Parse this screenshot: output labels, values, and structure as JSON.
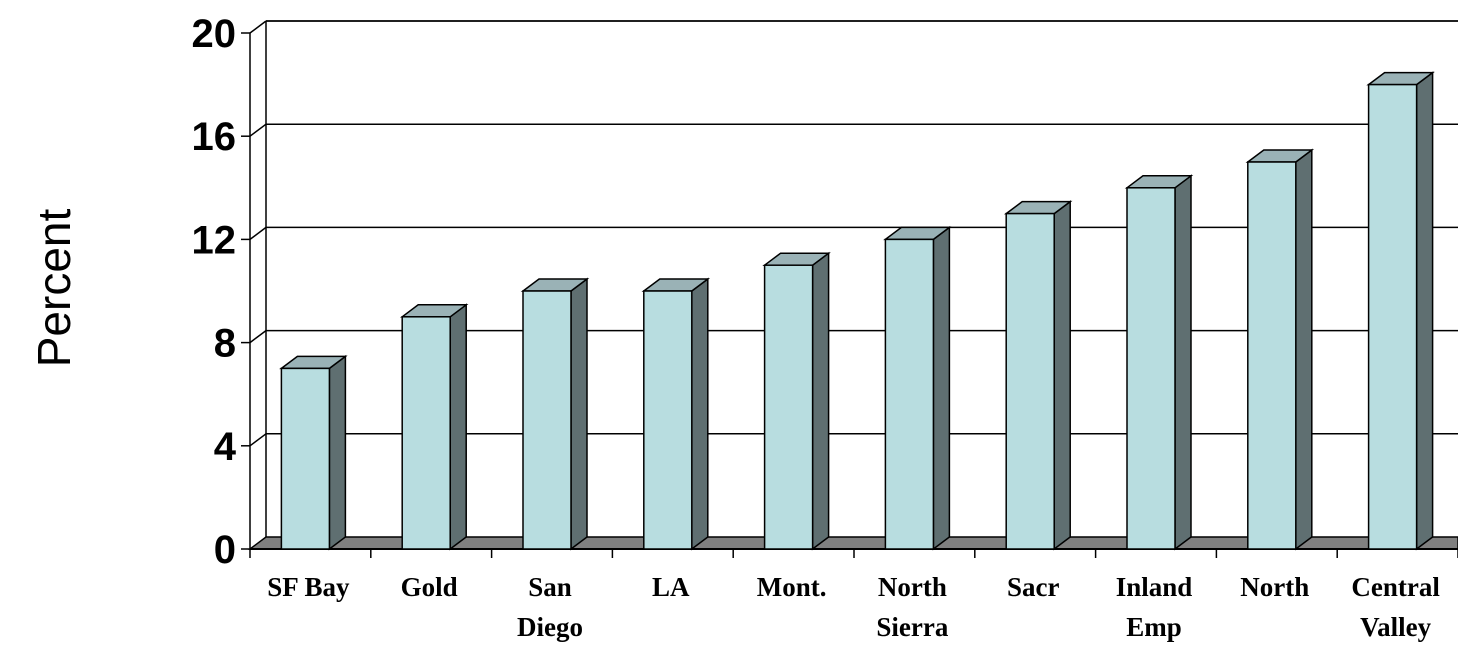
{
  "chart_data": {
    "type": "bar",
    "ylabel": "Percent",
    "xlabel": "",
    "ylim": [
      0,
      20
    ],
    "yticks": [
      0,
      4,
      8,
      12,
      16,
      20
    ],
    "categories": [
      [
        "SF Bay"
      ],
      [
        "Gold"
      ],
      [
        "San",
        "Diego"
      ],
      [
        "LA"
      ],
      [
        "Mont."
      ],
      [
        "North",
        "Sierra"
      ],
      [
        "Sacr"
      ],
      [
        "Inland",
        "Emp"
      ],
      [
        "North"
      ],
      [
        "Central",
        "Valley"
      ]
    ],
    "values": [
      7,
      9,
      10,
      10,
      11,
      12,
      13,
      14,
      15,
      18
    ],
    "grid": true,
    "style": "3d-column",
    "colors": {
      "bar_front": "#b8dde0",
      "bar_top": "#9ab2b6",
      "bar_side": "#5f6f71",
      "floor": "#808080",
      "gridline": "#000000"
    }
  }
}
